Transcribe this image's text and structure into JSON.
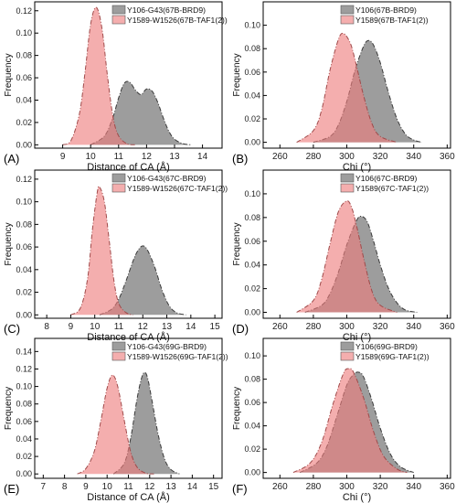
{
  "chart_data": [
    {
      "type": "area",
      "panel_label": "(A)",
      "xlabel": "Distance of CA (Å)",
      "ylabel": "Frequency",
      "xlim": [
        8,
        14.7
      ],
      "ylim": [
        -0.003,
        0.128
      ],
      "xticks": [
        9,
        10,
        11,
        12,
        13,
        14
      ],
      "yticks": [
        0.0,
        0.02,
        0.04,
        0.06,
        0.08,
        0.1,
        0.12
      ],
      "legend_position": "top-right",
      "series": [
        {
          "name": "Y106-G43(67B-BRD9)",
          "color": "#8c8c8c",
          "x": [
            10.0,
            10.5,
            10.8,
            11.0,
            11.2,
            11.4,
            11.6,
            11.8,
            12.0,
            12.2,
            12.4,
            12.6,
            12.8,
            13.0,
            13.3,
            13.6
          ],
          "values": [
            0.0,
            0.008,
            0.025,
            0.042,
            0.055,
            0.056,
            0.049,
            0.045,
            0.05,
            0.048,
            0.038,
            0.024,
            0.012,
            0.005,
            0.001,
            0.0
          ]
        },
        {
          "name": "Y1589-W1526(67B-TAF1(2))",
          "color": "#ee7d7d",
          "x": [
            9.0,
            9.3,
            9.6,
            9.8,
            10.0,
            10.2,
            10.4,
            10.6,
            10.8,
            11.0,
            11.3,
            11.6
          ],
          "values": [
            0.0,
            0.004,
            0.028,
            0.065,
            0.108,
            0.123,
            0.105,
            0.062,
            0.025,
            0.008,
            0.001,
            0.0
          ]
        }
      ]
    },
    {
      "type": "area",
      "panel_label": "(B)",
      "xlabel": "Chi (°)",
      "ylabel": "Frequency",
      "xlim": [
        250,
        362
      ],
      "ylim": [
        -0.005,
        0.12
      ],
      "xticks": [
        260,
        280,
        300,
        320,
        340,
        360
      ],
      "yticks": [
        0.0,
        0.02,
        0.04,
        0.06,
        0.08,
        0.1
      ],
      "legend_position": "top-right",
      "series": [
        {
          "name": "Y106(67B-BRD9)",
          "color": "#8c8c8c",
          "x": [
            280,
            290,
            295,
            300,
            305,
            310,
            313,
            316,
            320,
            325,
            330,
            335,
            340,
            345
          ],
          "values": [
            0.0,
            0.005,
            0.015,
            0.035,
            0.062,
            0.082,
            0.087,
            0.083,
            0.068,
            0.042,
            0.02,
            0.007,
            0.002,
            0.0
          ]
        },
        {
          "name": "Y1589(67B-TAF1(2))",
          "color": "#ee7d7d",
          "x": [
            270,
            280,
            285,
            290,
            295,
            298,
            302,
            305,
            310,
            315,
            320,
            330
          ],
          "values": [
            0.0,
            0.01,
            0.028,
            0.062,
            0.088,
            0.093,
            0.085,
            0.07,
            0.04,
            0.016,
            0.005,
            0.0
          ]
        }
      ]
    },
    {
      "type": "area",
      "panel_label": "(C)",
      "xlabel": "Distance of CA (Å)",
      "ylabel": "Frequency",
      "xlim": [
        7.5,
        15.3
      ],
      "ylim": [
        -0.003,
        0.128
      ],
      "xticks": [
        8,
        9,
        10,
        11,
        12,
        13,
        14,
        15
      ],
      "yticks": [
        0.0,
        0.02,
        0.04,
        0.06,
        0.08,
        0.1,
        0.12
      ],
      "legend_position": "top-right",
      "series": [
        {
          "name": "Y106-G43(67C-BRD9)",
          "color": "#8c8c8c",
          "x": [
            10.2,
            10.7,
            11.0,
            11.3,
            11.6,
            11.8,
            12.0,
            12.2,
            12.5,
            12.8,
            13.1,
            13.4,
            13.8
          ],
          "values": [
            0.0,
            0.005,
            0.014,
            0.03,
            0.048,
            0.057,
            0.061,
            0.057,
            0.042,
            0.022,
            0.008,
            0.002,
            0.0
          ]
        },
        {
          "name": "Y1589-W1526(67C-TAF1(2))",
          "color": "#ee7d7d",
          "x": [
            9.0,
            9.4,
            9.7,
            9.9,
            10.1,
            10.2,
            10.4,
            10.6,
            10.8,
            11.0,
            11.3,
            11.6
          ],
          "values": [
            0.0,
            0.006,
            0.032,
            0.075,
            0.108,
            0.113,
            0.1,
            0.066,
            0.03,
            0.01,
            0.002,
            0.0
          ]
        }
      ]
    },
    {
      "type": "area",
      "panel_label": "(D)",
      "xlabel": "Chi (°)",
      "ylabel": "Frequency",
      "xlim": [
        250,
        362
      ],
      "ylim": [
        -0.005,
        0.12
      ],
      "xticks": [
        260,
        280,
        300,
        320,
        340,
        360
      ],
      "yticks": [
        0.0,
        0.02,
        0.04,
        0.06,
        0.08,
        0.1
      ],
      "legend_position": "top-right",
      "series": [
        {
          "name": "Y106(67C-BRD9)",
          "color": "#8c8c8c",
          "x": [
            275,
            285,
            290,
            295,
            300,
            305,
            308,
            312,
            316,
            320,
            325,
            330,
            335,
            342
          ],
          "values": [
            0.0,
            0.006,
            0.016,
            0.034,
            0.057,
            0.075,
            0.081,
            0.077,
            0.06,
            0.04,
            0.02,
            0.008,
            0.002,
            0.0
          ]
        },
        {
          "name": "Y1589(67C-TAF1(2))",
          "color": "#ee7d7d",
          "x": [
            270,
            280,
            285,
            290,
            295,
            300,
            303,
            306,
            310,
            315,
            320,
            330
          ],
          "values": [
            0.0,
            0.01,
            0.028,
            0.058,
            0.085,
            0.094,
            0.088,
            0.072,
            0.046,
            0.018,
            0.006,
            0.0
          ]
        }
      ]
    },
    {
      "type": "area",
      "panel_label": "(E)",
      "xlabel": "Distance of CA (Å)",
      "ylabel": "Frequency",
      "xlim": [
        6.6,
        15.4
      ],
      "ylim": [
        -0.005,
        0.155
      ],
      "xticks": [
        7,
        8,
        9,
        10,
        11,
        12,
        13,
        14,
        15
      ],
      "yticks": [
        0.0,
        0.02,
        0.04,
        0.06,
        0.08,
        0.1,
        0.12,
        0.14
      ],
      "legend_position": "top-right",
      "series": [
        {
          "name": "Y106-G43(69G-BRD9)",
          "color": "#8c8c8c",
          "x": [
            10.3,
            10.8,
            11.1,
            11.4,
            11.6,
            11.75,
            11.9,
            12.1,
            12.4,
            12.7,
            13.0,
            13.4
          ],
          "values": [
            0.0,
            0.012,
            0.04,
            0.085,
            0.108,
            0.116,
            0.11,
            0.085,
            0.045,
            0.017,
            0.005,
            0.0
          ]
        },
        {
          "name": "Y1589-W1526(69G-TAF1(2))",
          "color": "#ee7d7d",
          "x": [
            8.6,
            9.0,
            9.4,
            9.7,
            10.0,
            10.25,
            10.5,
            10.8,
            11.1,
            11.4,
            11.8,
            12.2
          ],
          "values": [
            0.0,
            0.006,
            0.026,
            0.06,
            0.098,
            0.113,
            0.1,
            0.062,
            0.026,
            0.008,
            0.001,
            0.0
          ]
        }
      ]
    },
    {
      "type": "area",
      "panel_label": "(F)",
      "xlabel": "Chi (°)",
      "ylabel": "Frequency",
      "xlim": [
        250,
        362
      ],
      "ylim": [
        -0.005,
        0.115
      ],
      "xticks": [
        260,
        280,
        300,
        320,
        340,
        360
      ],
      "yticks": [
        0.0,
        0.02,
        0.04,
        0.06,
        0.08,
        0.1
      ],
      "legend_position": "top-right",
      "series": [
        {
          "name": "Y106(69G-BRD9)",
          "color": "#8c8c8c",
          "x": [
            272,
            282,
            288,
            294,
            300,
            304,
            307,
            310,
            315,
            320,
            326,
            332,
            340
          ],
          "values": [
            0.0,
            0.008,
            0.022,
            0.048,
            0.075,
            0.084,
            0.086,
            0.082,
            0.062,
            0.038,
            0.016,
            0.005,
            0.0
          ]
        },
        {
          "name": "Y1589(69G-TAF1(2))",
          "color": "#ee7d7d",
          "x": [
            268,
            278,
            285,
            292,
            298,
            301,
            304,
            310,
            316,
            322,
            330,
            336
          ],
          "values": [
            0.0,
            0.008,
            0.026,
            0.06,
            0.085,
            0.089,
            0.086,
            0.064,
            0.035,
            0.014,
            0.003,
            0.0
          ]
        }
      ]
    }
  ]
}
